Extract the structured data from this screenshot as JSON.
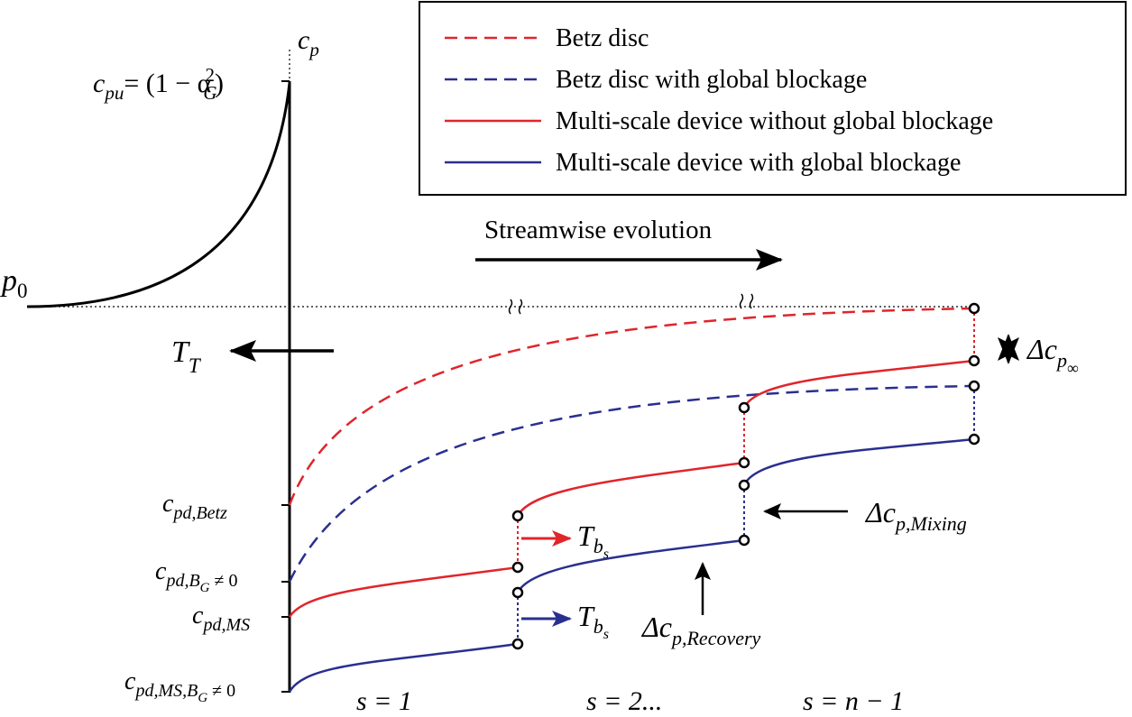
{
  "colors": {
    "red": "#e0252b",
    "blue": "#2a2f8f",
    "black": "#000000"
  },
  "legend": {
    "items": [
      {
        "label": "Betz disc",
        "style": "dashed",
        "color": "red"
      },
      {
        "label": "Betz disc with global blockage",
        "style": "dashed",
        "color": "blue"
      },
      {
        "label": "Multi-scale device without global blockage",
        "style": "solid",
        "color": "red"
      },
      {
        "label": "Multi-scale device with global blockage",
        "style": "solid",
        "color": "blue"
      }
    ]
  },
  "axis": {
    "cp": {
      "base": "c",
      "sub": "p"
    },
    "cpu": {
      "base": "c",
      "sub": "pu",
      "rhs": "= (1 − α",
      "rhs_sub": "G",
      "rhs_sup": "2",
      "rhs_close": ")"
    },
    "p0": {
      "base": "p",
      "sub": "0"
    }
  },
  "labels": {
    "streamwise": "Streamwise evolution",
    "thrust_T": {
      "base": "T",
      "sub": "T"
    },
    "tbs": {
      "base": "T",
      "sub": "b",
      "subsub": "s"
    },
    "delta_inf": {
      "delta": "Δc",
      "sub": "p",
      "subsub": "∞"
    },
    "delta_mixing": {
      "delta": "Δc",
      "sub": "p,Mixing"
    },
    "delta_recovery": {
      "delta": "Δc",
      "sub": "p,Recovery"
    },
    "stages": [
      "s = 1",
      "s = 2...",
      "s = n − 1"
    ],
    "cpd_betz": {
      "base": "c",
      "sub": "pd,Betz"
    },
    "cpd_bg": {
      "base": "c",
      "sub": "pd,B",
      "subsub": "G",
      "tail": " ≠ 0"
    },
    "cpd_ms": {
      "base": "c",
      "sub": "pd,MS"
    },
    "cpd_ms_bg": {
      "base": "c",
      "sub": "pd,MS,B",
      "subsub": "G",
      "tail": " ≠ 0"
    }
  }
}
